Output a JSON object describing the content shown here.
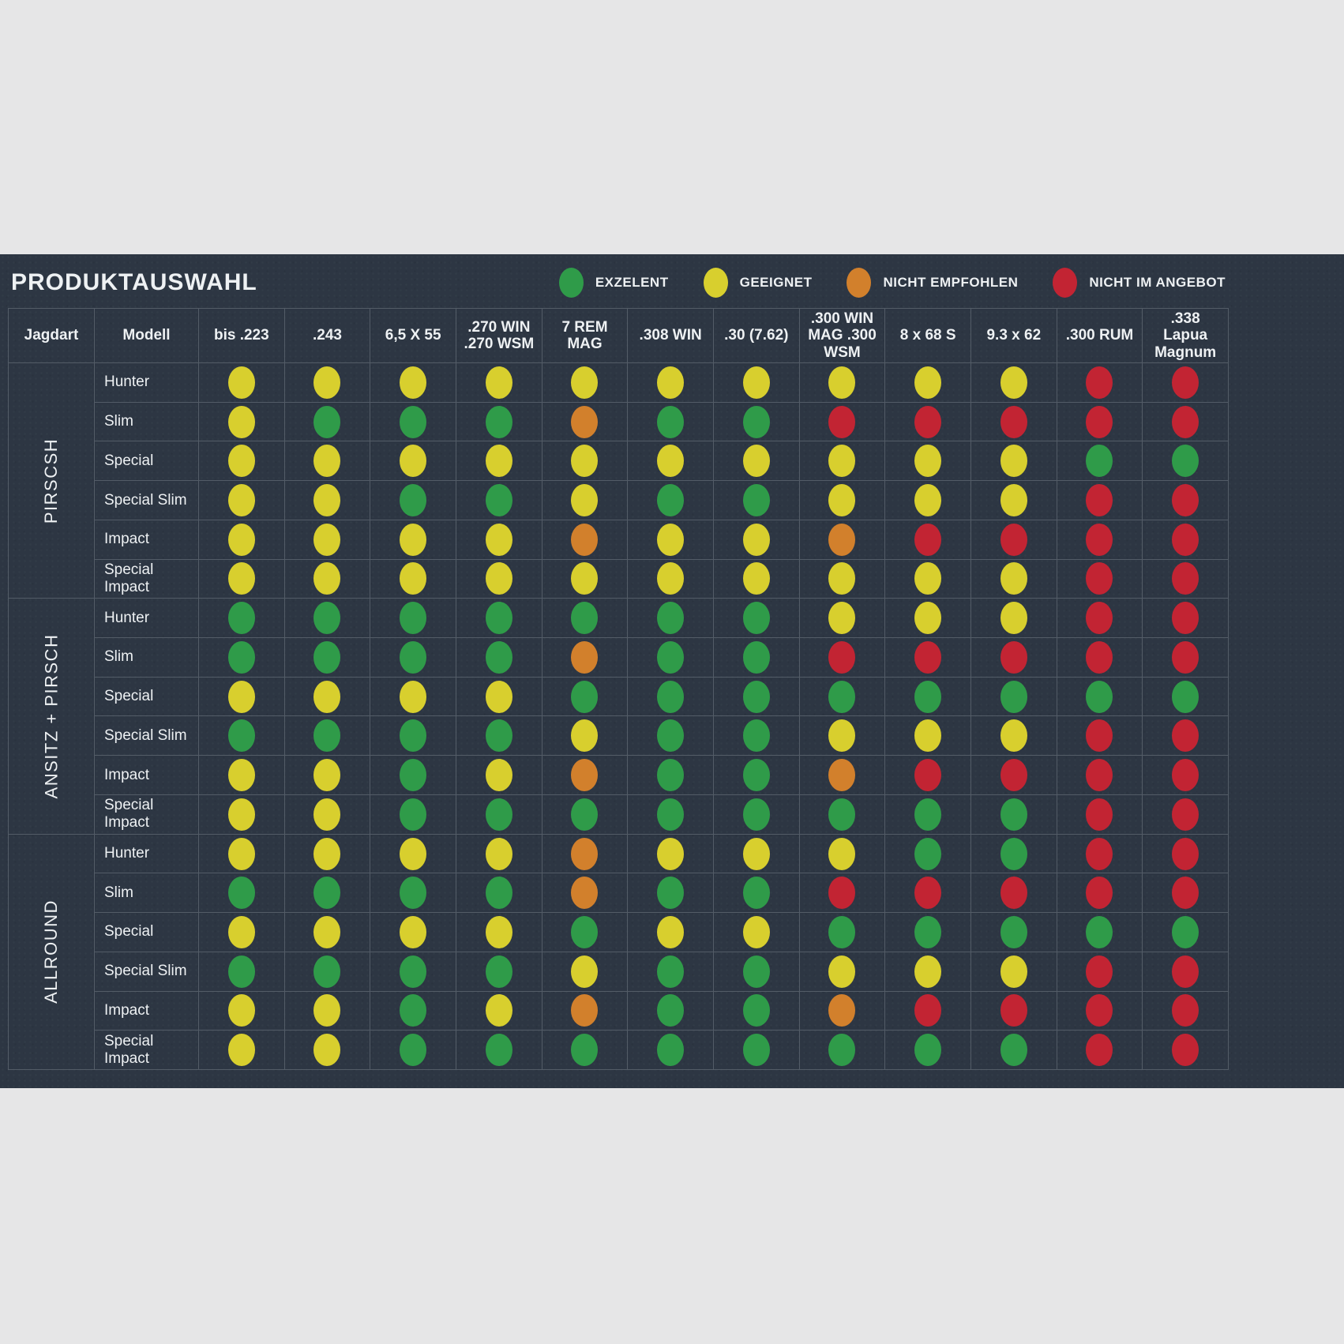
{
  "title": "PRODUKTAUSWAHL",
  "status_colors": {
    "G": "#2f9b49",
    "Y": "#d8cf2e",
    "O": "#d2802c",
    "R": "#c22433"
  },
  "legend": {
    "items": [
      {
        "key": "G",
        "label": "EXZELENT"
      },
      {
        "key": "Y",
        "label": "GEEIGNET"
      },
      {
        "key": "O",
        "label": "NICHT EMPFOHLEN"
      },
      {
        "key": "R",
        "label": "NICHT IM ANGEBOT"
      }
    ]
  },
  "table": {
    "left_headers": [
      "Jagdart",
      "Modell"
    ]
  },
  "chart_data": {
    "type": "table",
    "title": "PRODUKTAUSWAHL",
    "legend": {
      "G": "EXZELENT",
      "Y": "GEEIGNET",
      "O": "NICHT EMPFOHLEN",
      "R": "NICHT IM ANGEBOT"
    },
    "columns": [
      "bis .223",
      ".243",
      "6,5 X 55",
      ".270 WIN .270 WSM",
      "7 REM MAG",
      ".308 WIN",
      ".30 (7.62)",
      ".300 WIN MAG .300 WSM",
      "8 x 68 S",
      "9.3 x 62",
      ".300 RUM",
      ".338 Lapua Magnum"
    ],
    "rows": [
      {
        "jagdart": "PIRSCSH",
        "modell": "Hunter",
        "values": [
          "Y",
          "Y",
          "Y",
          "Y",
          "Y",
          "Y",
          "Y",
          "Y",
          "Y",
          "Y",
          "R",
          "R"
        ]
      },
      {
        "jagdart": "PIRSCSH",
        "modell": "Slim",
        "values": [
          "Y",
          "G",
          "G",
          "G",
          "O",
          "G",
          "G",
          "R",
          "R",
          "R",
          "R",
          "R"
        ]
      },
      {
        "jagdart": "PIRSCSH",
        "modell": "Special",
        "values": [
          "Y",
          "Y",
          "Y",
          "Y",
          "Y",
          "Y",
          "Y",
          "Y",
          "Y",
          "Y",
          "G",
          "G"
        ]
      },
      {
        "jagdart": "PIRSCSH",
        "modell": "Special Slim",
        "values": [
          "Y",
          "Y",
          "G",
          "G",
          "Y",
          "G",
          "G",
          "Y",
          "Y",
          "Y",
          "R",
          "R"
        ]
      },
      {
        "jagdart": "PIRSCSH",
        "modell": "Impact",
        "values": [
          "Y",
          "Y",
          "Y",
          "Y",
          "O",
          "Y",
          "Y",
          "O",
          "R",
          "R",
          "R",
          "R"
        ]
      },
      {
        "jagdart": "PIRSCSH",
        "modell": "Special Impact",
        "values": [
          "Y",
          "Y",
          "Y",
          "Y",
          "Y",
          "Y",
          "Y",
          "Y",
          "Y",
          "Y",
          "R",
          "R"
        ]
      },
      {
        "jagdart": "ANSITZ + PIRSCH",
        "modell": "Hunter",
        "values": [
          "G",
          "G",
          "G",
          "G",
          "G",
          "G",
          "G",
          "Y",
          "Y",
          "Y",
          "R",
          "R"
        ]
      },
      {
        "jagdart": "ANSITZ + PIRSCH",
        "modell": "Slim",
        "values": [
          "G",
          "G",
          "G",
          "G",
          "O",
          "G",
          "G",
          "R",
          "R",
          "R",
          "R",
          "R"
        ]
      },
      {
        "jagdart": "ANSITZ + PIRSCH",
        "modell": "Special",
        "values": [
          "Y",
          "Y",
          "Y",
          "Y",
          "G",
          "G",
          "G",
          "G",
          "G",
          "G",
          "G",
          "G"
        ]
      },
      {
        "jagdart": "ANSITZ + PIRSCH",
        "modell": "Special Slim",
        "values": [
          "G",
          "G",
          "G",
          "G",
          "Y",
          "G",
          "G",
          "Y",
          "Y",
          "Y",
          "R",
          "R"
        ]
      },
      {
        "jagdart": "ANSITZ + PIRSCH",
        "modell": "Impact",
        "values": [
          "Y",
          "Y",
          "G",
          "Y",
          "O",
          "G",
          "G",
          "O",
          "R",
          "R",
          "R",
          "R"
        ]
      },
      {
        "jagdart": "ANSITZ + PIRSCH",
        "modell": "Special Impact",
        "values": [
          "Y",
          "Y",
          "G",
          "G",
          "G",
          "G",
          "G",
          "G",
          "G",
          "G",
          "R",
          "R"
        ]
      },
      {
        "jagdart": "ALLROUND",
        "modell": "Hunter",
        "values": [
          "Y",
          "Y",
          "Y",
          "Y",
          "O",
          "Y",
          "Y",
          "Y",
          "G",
          "G",
          "R",
          "R"
        ]
      },
      {
        "jagdart": "ALLROUND",
        "modell": "Slim",
        "values": [
          "G",
          "G",
          "G",
          "G",
          "O",
          "G",
          "G",
          "R",
          "R",
          "R",
          "R",
          "R"
        ]
      },
      {
        "jagdart": "ALLROUND",
        "modell": "Special",
        "values": [
          "Y",
          "Y",
          "Y",
          "Y",
          "G",
          "Y",
          "Y",
          "G",
          "G",
          "G",
          "G",
          "G"
        ]
      },
      {
        "jagdart": "ALLROUND",
        "modell": "Special Slim",
        "values": [
          "G",
          "G",
          "G",
          "G",
          "Y",
          "G",
          "G",
          "Y",
          "Y",
          "Y",
          "R",
          "R"
        ]
      },
      {
        "jagdart": "ALLROUND",
        "modell": "Impact",
        "values": [
          "Y",
          "Y",
          "G",
          "Y",
          "O",
          "G",
          "G",
          "O",
          "R",
          "R",
          "R",
          "R"
        ]
      },
      {
        "jagdart": "ALLROUND",
        "modell": "Special Impact",
        "values": [
          "Y",
          "Y",
          "G",
          "G",
          "G",
          "G",
          "G",
          "G",
          "G",
          "G",
          "R",
          "R"
        ]
      }
    ]
  }
}
